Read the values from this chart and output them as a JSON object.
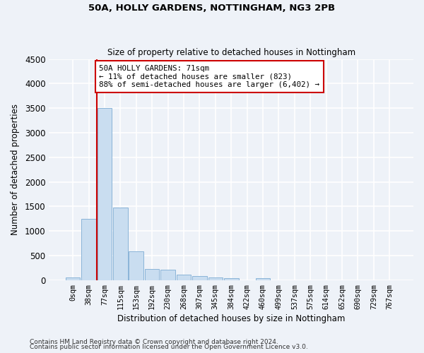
{
  "title1": "50A, HOLLY GARDENS, NOTTINGHAM, NG3 2PB",
  "title2": "Size of property relative to detached houses in Nottingham",
  "xlabel": "Distribution of detached houses by size in Nottingham",
  "ylabel": "Number of detached properties",
  "footnote1": "Contains HM Land Registry data © Crown copyright and database right 2024.",
  "footnote2": "Contains public sector information licensed under the Open Government Licence v3.0.",
  "bar_labels": [
    "0sqm",
    "38sqm",
    "77sqm",
    "115sqm",
    "153sqm",
    "192sqm",
    "230sqm",
    "268sqm",
    "307sqm",
    "345sqm",
    "384sqm",
    "422sqm",
    "460sqm",
    "499sqm",
    "537sqm",
    "575sqm",
    "614sqm",
    "652sqm",
    "690sqm",
    "729sqm",
    "767sqm"
  ],
  "bar_values": [
    50,
    1250,
    3500,
    1470,
    580,
    220,
    210,
    110,
    80,
    60,
    45,
    0,
    40,
    0,
    0,
    0,
    0,
    0,
    0,
    0,
    0
  ],
  "bar_color": "#c9ddf0",
  "bar_edge_color": "#8ab4d8",
  "ylim": [
    0,
    4500
  ],
  "yticks": [
    0,
    500,
    1000,
    1500,
    2000,
    2500,
    3000,
    3500,
    4000,
    4500
  ],
  "property_bar_index": 2,
  "annotation_text": "50A HOLLY GARDENS: 71sqm\n← 11% of detached houses are smaller (823)\n88% of semi-detached houses are larger (6,402) →",
  "annotation_box_color": "#ffffff",
  "annotation_box_edge_color": "#cc0000",
  "marker_line_color": "#cc0000",
  "background_color": "#eef2f8",
  "grid_color": "#ffffff"
}
